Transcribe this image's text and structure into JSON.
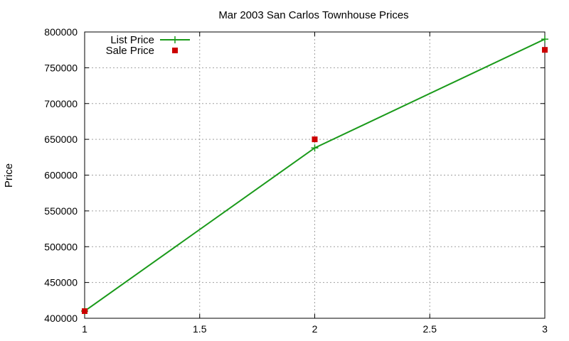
{
  "chart_data": {
    "type": "line",
    "title": "Mar 2003 San Carlos Townhouse Prices",
    "xlabel": "",
    "ylabel": "Price",
    "xlim": [
      1,
      3
    ],
    "ylim": [
      400000,
      800000
    ],
    "xticks": [
      1,
      1.5,
      2,
      2.5,
      3
    ],
    "xtick_labels": [
      "1",
      "1.5",
      "2",
      "2.5",
      "3"
    ],
    "yticks": [
      400000,
      450000,
      500000,
      550000,
      600000,
      650000,
      700000,
      750000,
      800000
    ],
    "ytick_labels": [
      "400000",
      "450000",
      "500000",
      "550000",
      "600000",
      "650000",
      "700000",
      "750000",
      "800000"
    ],
    "grid": true,
    "legend_position": "top-left",
    "series": [
      {
        "name": "List Price",
        "style": "linespoints",
        "marker": "plus",
        "color": "#1a9a1a",
        "x": [
          1,
          2,
          3
        ],
        "y": [
          410000,
          638000,
          790000
        ]
      },
      {
        "name": "Sale Price",
        "style": "points",
        "marker": "square",
        "color": "#cc0000",
        "x": [
          1,
          2,
          3
        ],
        "y": [
          410000,
          650000,
          775000
        ]
      }
    ]
  }
}
